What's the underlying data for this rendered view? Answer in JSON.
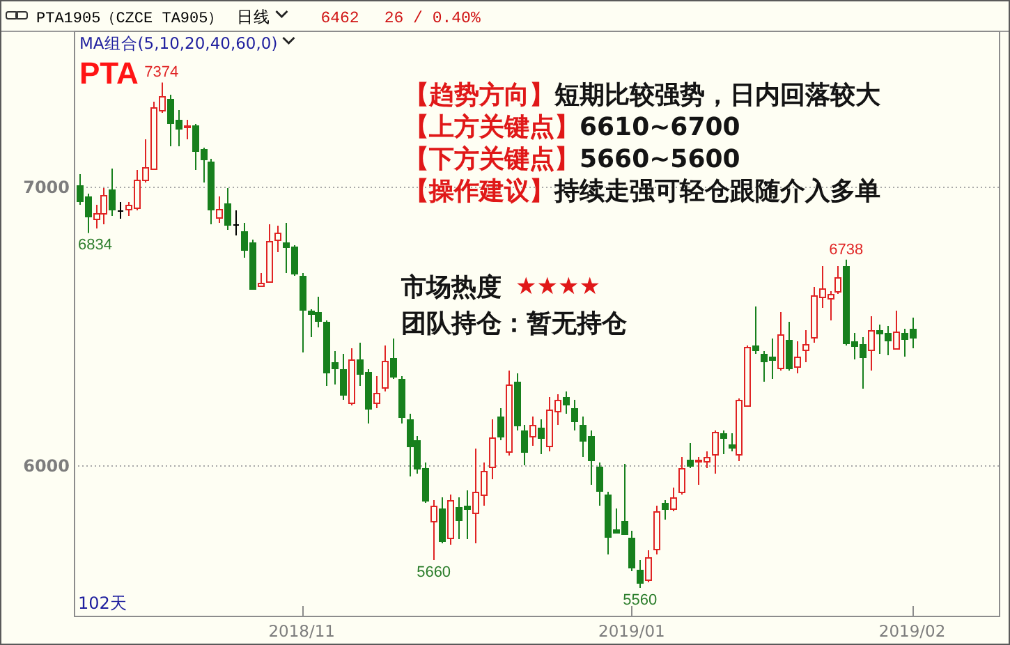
{
  "chart_data": {
    "type": "candlestick",
    "title": "PTA",
    "categories": [
      null,
      null,
      null,
      null,
      null,
      null,
      null,
      null,
      null,
      null,
      null,
      null,
      null,
      null,
      null,
      null,
      null,
      null,
      null,
      null,
      null,
      null,
      null,
      null,
      null,
      null,
      null,
      "2018/11",
      null,
      null,
      null,
      null,
      null,
      null,
      null,
      null,
      null,
      null,
      null,
      null,
      null,
      null,
      null,
      null,
      null,
      null,
      null,
      null,
      null,
      null,
      null,
      null,
      null,
      null,
      null,
      null,
      null,
      null,
      null,
      null,
      null,
      null,
      null,
      null,
      null,
      null,
      null,
      "2019/01",
      null,
      null,
      null,
      null,
      null,
      null,
      null,
      null,
      null,
      null,
      null,
      null,
      null,
      null,
      null,
      null,
      null,
      null,
      null,
      null,
      null,
      null,
      null,
      null,
      null,
      null,
      null,
      null,
      null,
      null,
      null,
      null,
      null,
      "2019/02"
    ],
    "ohlc": [
      [
        7005,
        7045,
        6935,
        6950
      ],
      [
        6965,
        6975,
        6834,
        6895
      ],
      [
        6885,
        6935,
        6850,
        6905
      ],
      [
        6905,
        6995,
        6865,
        6970
      ],
      [
        6990,
        7065,
        6895,
        6920
      ],
      [
        6915,
        6945,
        6885,
        6915
      ],
      [
        6920,
        6945,
        6895,
        6935
      ],
      [
        6925,
        7060,
        6915,
        7025
      ],
      [
        7025,
        7170,
        7015,
        7070
      ],
      [
        7065,
        7305,
        7060,
        7285
      ],
      [
        7275,
        7374,
        7265,
        7325
      ],
      [
        7315,
        7330,
        7145,
        7230
      ],
      [
        7240,
        7275,
        7145,
        7210
      ],
      [
        7215,
        7240,
        7170,
        7220
      ],
      [
        7220,
        7225,
        7060,
        7130
      ],
      [
        7135,
        7140,
        7015,
        7100
      ],
      [
        7090,
        7100,
        6865,
        6920
      ],
      [
        6890,
        6965,
        6870,
        6920
      ],
      [
        6940,
        6995,
        6845,
        6865
      ],
      [
        6865,
        6915,
        6825,
        6865
      ],
      [
        6840,
        6870,
        6745,
        6775
      ],
      [
        6800,
        6810,
        6630,
        6635
      ],
      [
        6645,
        6690,
        6640,
        6655
      ],
      [
        6660,
        6865,
        6655,
        6805
      ],
      [
        6810,
        6860,
        6765,
        6835
      ],
      [
        6800,
        6870,
        6690,
        6785
      ],
      [
        6785,
        6790,
        6680,
        6690
      ],
      [
        6680,
        6690,
        6405,
        6560
      ],
      [
        6555,
        6560,
        6460,
        6545
      ],
      [
        6550,
        6605,
        6495,
        6520
      ],
      [
        6515,
        6520,
        6285,
        6335
      ],
      [
        6370,
        6410,
        6290,
        6350
      ],
      [
        6345,
        6400,
        6235,
        6255
      ],
      [
        6225,
        6420,
        6215,
        6380
      ],
      [
        6380,
        6440,
        6285,
        6330
      ],
      [
        6335,
        6345,
        6150,
        6205
      ],
      [
        6225,
        6320,
        6205,
        6260
      ],
      [
        6280,
        6430,
        6265,
        6375
      ],
      [
        6385,
        6455,
        6310,
        6320
      ],
      [
        6310,
        6320,
        6150,
        6175
      ],
      [
        6165,
        6185,
        5960,
        6070
      ],
      [
        6090,
        6105,
        5970,
        5990
      ],
      [
        5990,
        6010,
        5865,
        5875
      ],
      [
        5800,
        5875,
        5660,
        5855
      ],
      [
        5845,
        5885,
        5720,
        5730
      ],
      [
        5740,
        5895,
        5715,
        5875
      ],
      [
        5850,
        5885,
        5735,
        5805
      ],
      [
        5855,
        5910,
        5735,
        5845
      ],
      [
        5830,
        6060,
        5720,
        5905
      ],
      [
        5895,
        6010,
        5855,
        5980
      ],
      [
        5995,
        6165,
        5950,
        6100
      ],
      [
        6175,
        6205,
        6090,
        6105
      ],
      [
        6050,
        6340,
        6035,
        6290
      ],
      [
        6300,
        6330,
        6125,
        6145
      ],
      [
        6125,
        6145,
        6000,
        6050
      ],
      [
        6105,
        6175,
        6070,
        6145
      ],
      [
        6135,
        6165,
        6040,
        6100
      ],
      [
        6070,
        6245,
        6050,
        6200
      ],
      [
        6195,
        6255,
        6145,
        6235
      ],
      [
        6245,
        6265,
        6185,
        6220
      ],
      [
        6205,
        6235,
        6125,
        6160
      ],
      [
        6145,
        6175,
        6030,
        6090
      ],
      [
        6105,
        6125,
        5930,
        6020
      ],
      [
        5995,
        6010,
        5855,
        5910
      ],
      [
        5895,
        5905,
        5680,
        5745
      ],
      [
        5770,
        5845,
        5755,
        5760
      ],
      [
        5800,
        6005,
        5750,
        5755
      ],
      [
        5740,
        5765,
        5620,
        5635
      ],
      [
        5625,
        5660,
        5560,
        5580
      ],
      [
        5590,
        5695,
        5580,
        5670
      ],
      [
        5700,
        5855,
        5680,
        5835
      ],
      [
        5865,
        5875,
        5805,
        5845
      ],
      [
        5845,
        5920,
        5835,
        5885
      ],
      [
        5905,
        6030,
        5895,
        5990
      ],
      [
        6020,
        6080,
        5990,
        6000
      ],
      [
        6015,
        6030,
        5930,
        6020
      ],
      [
        6015,
        6050,
        5990,
        6030
      ],
      [
        6040,
        6125,
        5970,
        6120
      ],
      [
        6115,
        6125,
        6040,
        6100
      ],
      [
        6075,
        6115,
        6050,
        6065
      ],
      [
        6040,
        6240,
        6015,
        6235
      ],
      [
        6215,
        6430,
        6215,
        6425
      ],
      [
        6430,
        6570,
        6400,
        6415
      ],
      [
        6400,
        6410,
        6300,
        6375
      ],
      [
        6390,
        6455,
        6310,
        6380
      ],
      [
        6350,
        6550,
        6340,
        6470
      ],
      [
        6450,
        6515,
        6340,
        6350
      ],
      [
        6355,
        6445,
        6330,
        6390
      ],
      [
        6415,
        6485,
        6370,
        6435
      ],
      [
        6460,
        6640,
        6440,
        6610
      ],
      [
        6605,
        6715,
        6565,
        6635
      ],
      [
        6600,
        6625,
        6520,
        6615
      ],
      [
        6625,
        6715,
        6615,
        6675
      ],
      [
        6715,
        6738,
        6430,
        6440
      ],
      [
        6445,
        6475,
        6380,
        6430
      ],
      [
        6435,
        6460,
        6275,
        6390
      ],
      [
        6415,
        6535,
        6340,
        6485
      ],
      [
        6485,
        6505,
        6400,
        6475
      ],
      [
        6475,
        6500,
        6395,
        6450
      ],
      [
        6420,
        6555,
        6415,
        6480
      ],
      [
        6475,
        6490,
        6390,
        6455
      ],
      [
        6490,
        6530,
        6420,
        6462
      ]
    ],
    "colors": [
      "#17801d",
      "#17801d",
      "#e02424",
      "#e02424",
      "#17801d",
      "#000000",
      "#e02424",
      "#e02424",
      "#e02424",
      "#e02424",
      "#e02424",
      "#17801d",
      "#17801d",
      "#e02424",
      "#17801d",
      "#17801d",
      "#17801d",
      "#e02424",
      "#17801d",
      "#000000",
      "#17801d",
      "#17801d",
      "#e02424",
      "#e02424",
      "#e02424",
      "#17801d",
      "#17801d",
      "#17801d",
      "#17801d",
      "#17801d",
      "#17801d",
      "#17801d",
      "#17801d",
      "#e02424",
      "#17801d",
      "#17801d",
      "#e02424",
      "#e02424",
      "#17801d",
      "#17801d",
      "#17801d",
      "#17801d",
      "#17801d",
      "#e02424",
      "#17801d",
      "#e02424",
      "#17801d",
      "#17801d",
      "#e02424",
      "#e02424",
      "#e02424",
      "#17801d",
      "#e02424",
      "#17801d",
      "#17801d",
      "#e02424",
      "#17801d",
      "#e02424",
      "#e02424",
      "#17801d",
      "#17801d",
      "#17801d",
      "#17801d",
      "#17801d",
      "#17801d",
      "#17801d",
      "#17801d",
      "#17801d",
      "#17801d",
      "#e02424",
      "#e02424",
      "#17801d",
      "#e02424",
      "#e02424",
      "#17801d",
      "#e02424",
      "#e02424",
      "#e02424",
      "#17801d",
      "#17801d",
      "#e02424",
      "#e02424",
      "#17801d",
      "#17801d",
      "#17801d",
      "#e02424",
      "#17801d",
      "#e02424",
      "#e02424",
      "#e02424",
      "#e02424",
      "#e02424",
      "#e02424",
      "#17801d",
      "#17801d",
      "#17801d",
      "#e02424",
      "#17801d",
      "#17801d",
      "#e02424",
      "#17801d",
      "#17801d"
    ],
    "value_labels": [
      null,
      "6834",
      null,
      null,
      null,
      null,
      null,
      null,
      null,
      null,
      "7374",
      null,
      null,
      null,
      null,
      null,
      null,
      null,
      null,
      null,
      null,
      null,
      null,
      null,
      null,
      null,
      null,
      null,
      null,
      null,
      null,
      null,
      null,
      null,
      null,
      null,
      null,
      null,
      null,
      null,
      null,
      null,
      null,
      "5660",
      null,
      null,
      null,
      null,
      null,
      null,
      null,
      null,
      null,
      null,
      null,
      null,
      null,
      null,
      null,
      null,
      null,
      null,
      null,
      null,
      null,
      null,
      null,
      null,
      "5560",
      null,
      null,
      null,
      null,
      null,
      null,
      null,
      null,
      null,
      null,
      null,
      null,
      null,
      null,
      null,
      null,
      null,
      null,
      null,
      null,
      null,
      null,
      null,
      null,
      "6738",
      null,
      null,
      null,
      null,
      null,
      null,
      null,
      null
    ],
    "ylim": [
      5460,
      7560
    ],
    "yticks": [
      6000,
      7000
    ],
    "grid": "y",
    "annotations": [
      "PTA1905（CZCE TA905）",
      "日线",
      "6462",
      "26 / 0.40%",
      "MA组合(5,10,20,40,60,0)",
      "【趋势方向】",
      "短期比较强势，日内回落较大",
      "【上方关键点】",
      "6610~6700",
      "【下方关键点】",
      "5660~5600",
      "【操作建议】",
      "持续走强可轻仓跟随介入多单",
      "市场热度",
      "★★★★",
      "团队持仓：暂无持仓",
      "102天"
    ]
  }
}
